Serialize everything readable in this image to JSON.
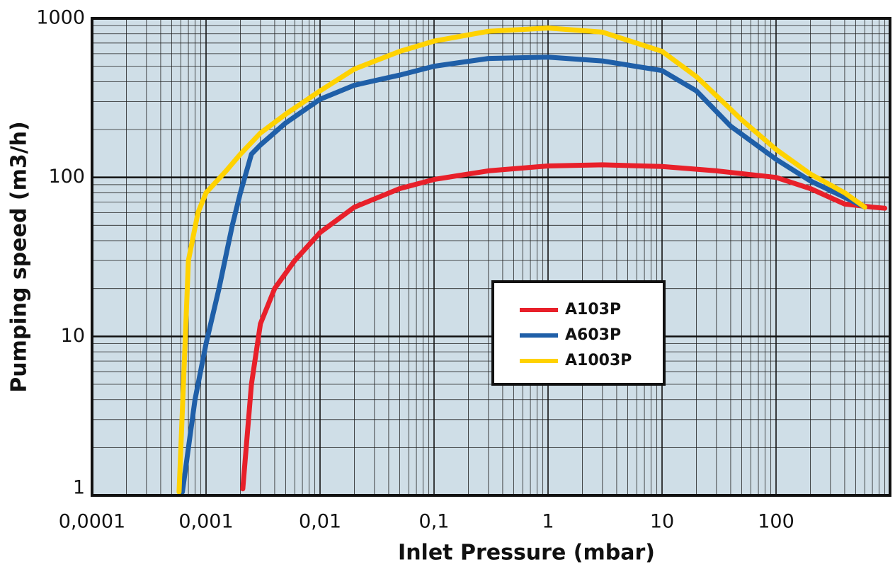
{
  "chart_data": {
    "type": "line",
    "x_label": "Inlet Pressure (mbar)",
    "y_label": "Pumping speed (m3/h)",
    "xscale": "log",
    "yscale": "log",
    "xlim": [
      0.0001,
      1000
    ],
    "ylim": [
      1,
      1000
    ],
    "xticks": [
      {
        "value": 0.0001,
        "label": "0,0001"
      },
      {
        "value": 0.001,
        "label": "0,001"
      },
      {
        "value": 0.01,
        "label": "0,01"
      },
      {
        "value": 0.1,
        "label": "0,1"
      },
      1,
      10,
      100
    ],
    "yticks": [
      1,
      10,
      100,
      1000
    ],
    "grid": true,
    "minor_grid": true,
    "background": "#cfdee7",
    "legend_position": "center-right",
    "series": [
      {
        "name": "A103P",
        "color": "#e8202a",
        "x": [
          0.0021,
          0.0025,
          0.003,
          0.004,
          0.006,
          0.01,
          0.02,
          0.05,
          0.1,
          0.3,
          1,
          3,
          10,
          30,
          100,
          200,
          400,
          700,
          900
        ],
        "values": [
          1.1,
          5,
          12,
          20,
          30,
          45,
          65,
          85,
          97,
          110,
          118,
          120,
          117,
          110,
          100,
          85,
          68,
          65,
          64
        ]
      },
      {
        "name": "A603P",
        "color": "#1f5fa8",
        "x": [
          0.00062,
          0.0008,
          0.001,
          0.0013,
          0.0017,
          0.002,
          0.0025,
          0.003,
          0.005,
          0.01,
          0.02,
          0.05,
          0.1,
          0.3,
          1,
          3,
          10,
          20,
          40,
          100,
          200,
          400,
          600
        ],
        "values": [
          1.05,
          4,
          9,
          20,
          50,
          80,
          140,
          160,
          220,
          310,
          380,
          440,
          500,
          560,
          570,
          540,
          470,
          350,
          210,
          130,
          95,
          75,
          65
        ]
      },
      {
        "name": "A1003P",
        "color": "#ffd200",
        "x": [
          0.00058,
          0.0007,
          0.00085,
          0.001,
          0.0015,
          0.002,
          0.003,
          0.005,
          0.01,
          0.02,
          0.05,
          0.1,
          0.3,
          1,
          3,
          10,
          20,
          50,
          100,
          200,
          400,
          600
        ],
        "values": [
          1.05,
          30,
          60,
          80,
          110,
          140,
          190,
          250,
          350,
          480,
          620,
          720,
          830,
          870,
          820,
          620,
          430,
          230,
          150,
          105,
          80,
          65
        ]
      }
    ]
  }
}
